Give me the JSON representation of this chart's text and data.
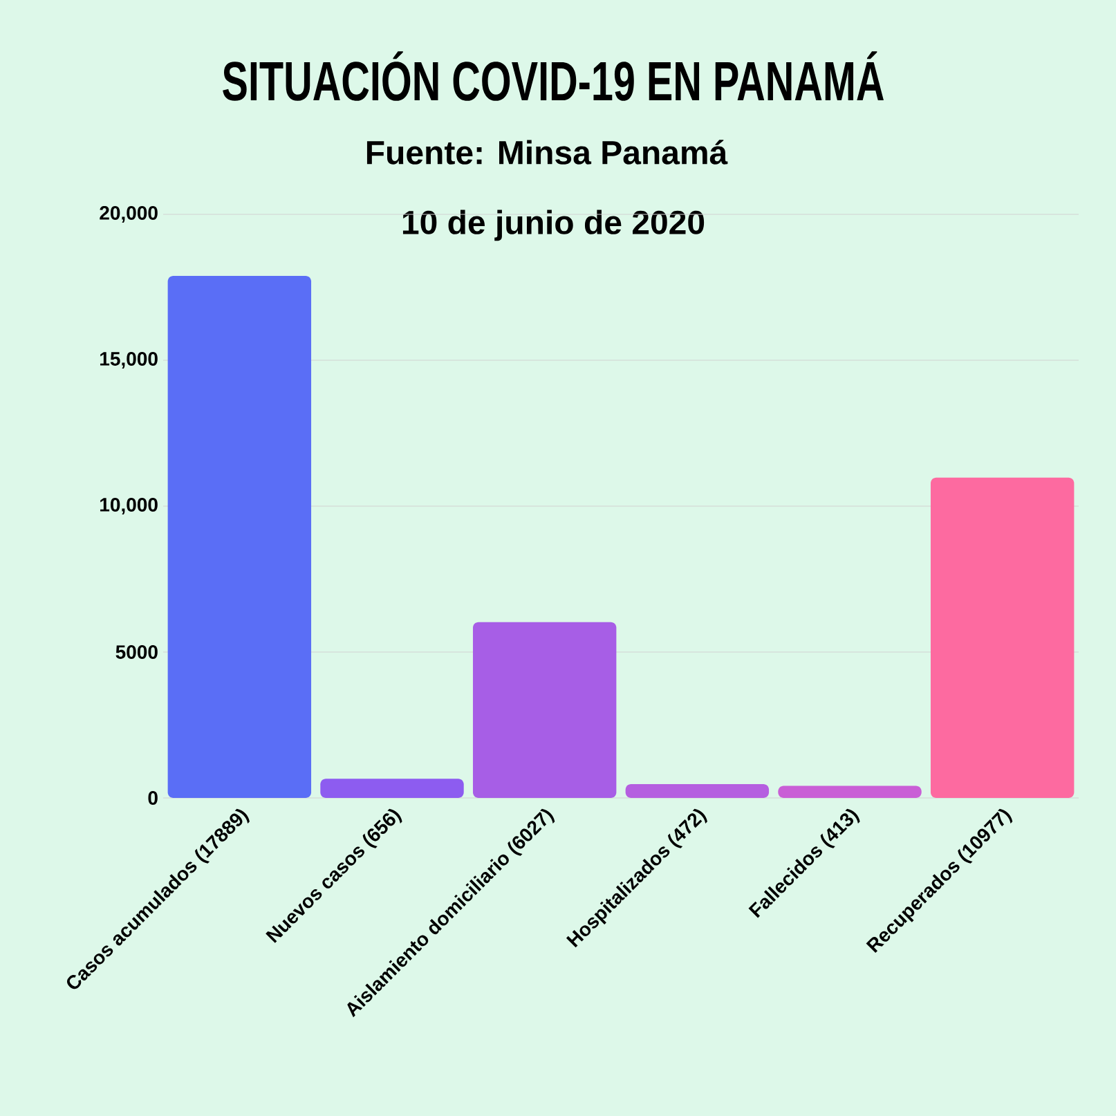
{
  "chart_data": {
    "type": "bar",
    "title": "SITUACIÓN COVID-19 EN PANAMÁ",
    "subtitle": "Fuente: Minsa Panamá",
    "annotations": [
      "10 de junio de 2020"
    ],
    "categories": [
      "Casos acumulados (17889)",
      "Nuevos casos (656)",
      "Aislamiento domiciliario (6027)",
      "Hospitalizados (472)",
      "Fallecidos (413)",
      "Recuperados (10977)"
    ],
    "values": [
      17889,
      656,
      6027,
      472,
      413,
      10977
    ],
    "colors": [
      "#5a6ef6",
      "#8d5cf0",
      "#a75ee6",
      "#b55fe0",
      "#c95fd6",
      "#fd6aa0"
    ],
    "ylim": [
      0,
      20000
    ],
    "yticks": [
      0,
      {
        "value": 5000,
        "label": "5000"
      },
      {
        "value": 10000,
        "label": "10,000"
      },
      {
        "value": 15000,
        "label": "15,000"
      },
      {
        "value": 20000,
        "label": "20,000"
      }
    ],
    "grid": "y"
  }
}
